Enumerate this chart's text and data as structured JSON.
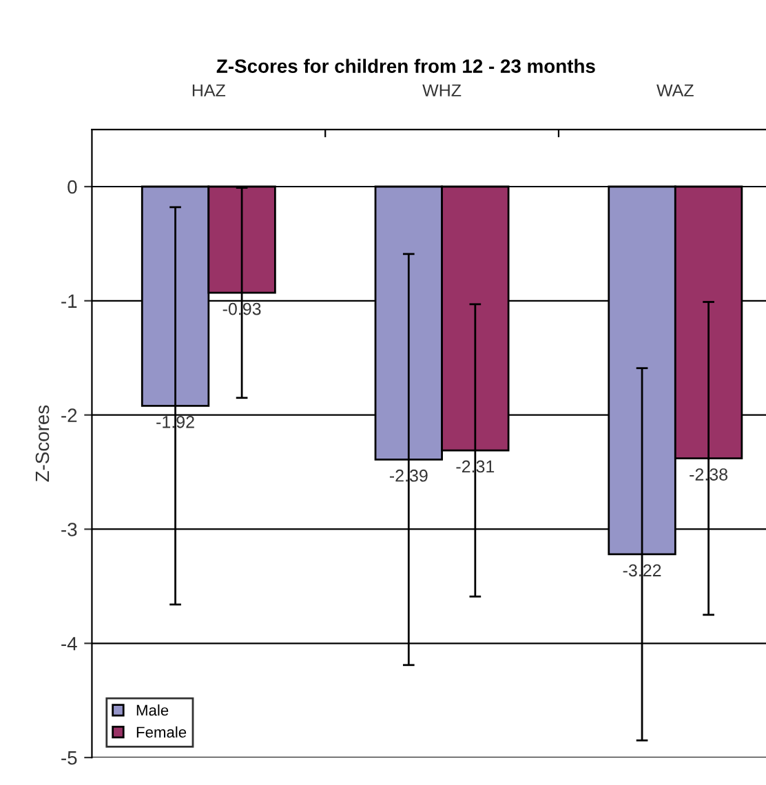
{
  "chart_data": {
    "type": "bar",
    "title": "Z-Scores for children from 12 - 23 months",
    "ylabel": "Z-Scores",
    "categories": [
      "HAZ",
      "WHZ",
      "WAZ"
    ],
    "series": [
      {
        "name": "Male",
        "color": "#9595c8",
        "values": [
          -1.92,
          -2.39,
          -3.22
        ],
        "errors": [
          1.74,
          1.8,
          1.63
        ]
      },
      {
        "name": "Female",
        "color": "#993366",
        "values": [
          -0.93,
          -2.31,
          -2.38
        ],
        "errors": [
          0.92,
          1.28,
          1.37
        ]
      }
    ],
    "ylim": [
      -5,
      0.5
    ],
    "yticks": [
      0,
      -1,
      -2,
      -3,
      -4,
      -5
    ],
    "grid": "y",
    "legend": "bottom left",
    "data_labels": true
  }
}
